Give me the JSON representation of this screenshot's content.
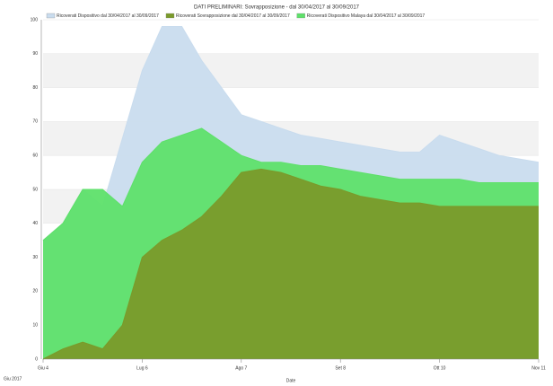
{
  "chart_data": {
    "type": "area",
    "title": "DATI PRELIMINARI: Sovrapposizione - dal 30/04/2017 al 30/09/2017",
    "x_label": "Date",
    "corner_label": "Giu 2017",
    "x": [
      0,
      4,
      8,
      12,
      16,
      20,
      24,
      28,
      32,
      36,
      40,
      44,
      48,
      52,
      56,
      60,
      64,
      68,
      72,
      76,
      80,
      84,
      88,
      92,
      96,
      100
    ],
    "series": [
      {
        "name": "Ricoverati Dispositivo dal 30/04/2017 al 30/09/2017",
        "color": "#c9dcee",
        "values": [
          35,
          40,
          50,
          45,
          65,
          85,
          98,
          98,
          88,
          80,
          72,
          70,
          68,
          66,
          65,
          64,
          63,
          62,
          61,
          61,
          66,
          64,
          62,
          60,
          59,
          58
        ]
      },
      {
        "name": "Ricoverati Sovrapposizione dal 30/04/2017 al 30/09/2017",
        "color": "#7a9a2a",
        "values": [
          0,
          3,
          5,
          3,
          10,
          30,
          35,
          38,
          42,
          48,
          55,
          56,
          55,
          53,
          51,
          50,
          48,
          47,
          46,
          46,
          45,
          45,
          45,
          45,
          45,
          45
        ]
      },
      {
        "name": "Ricoverati Dispositivo Malaya dal 30/04/2017 al 30/09/2017",
        "color": "#5ee06a",
        "values": [
          35,
          40,
          50,
          50,
          45,
          58,
          64,
          66,
          68,
          64,
          60,
          58,
          58,
          57,
          57,
          56,
          55,
          54,
          53,
          53,
          53,
          53,
          52,
          52,
          52,
          52
        ]
      }
    ],
    "draw_order": [
      0,
      2,
      1
    ],
    "xlim": [
      0,
      100
    ],
    "xticks": [
      {
        "value": 0,
        "label": "Giu 4"
      },
      {
        "value": 20,
        "label": "Lug 6"
      },
      {
        "value": 40,
        "label": "Ago 7"
      },
      {
        "value": 60,
        "label": "Set 8"
      },
      {
        "value": 80,
        "label": "Ott 10"
      },
      {
        "value": 100,
        "label": "Nov 11"
      }
    ],
    "ylim": [
      0,
      100
    ],
    "yticks": [
      0,
      10,
      20,
      30,
      40,
      50,
      60,
      70,
      80,
      90,
      100
    ],
    "grid": true
  }
}
